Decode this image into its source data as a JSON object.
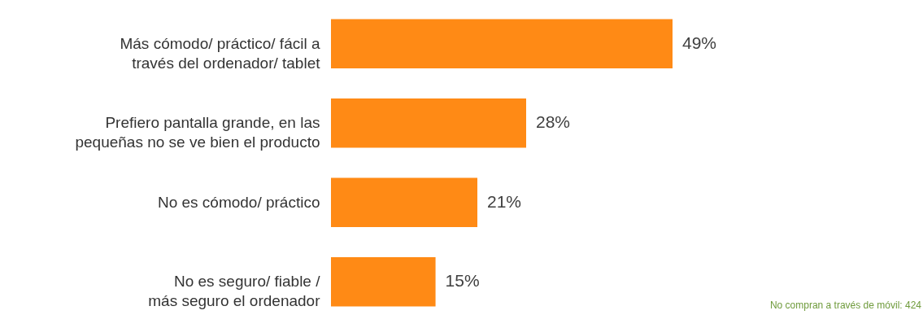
{
  "chart_data": {
    "type": "bar",
    "orientation": "horizontal",
    "categories": [
      "Más cómodo/ práctico/ fácil a\ntravés del ordenador/ tablet",
      "Prefiero pantalla grande, en las\npequeñas no se ve bien el producto",
      "No es cómodo/ práctico",
      "No es seguro/ fiable /\nmás seguro el ordenador"
    ],
    "values": [
      49,
      28,
      21,
      15
    ],
    "color": "#ff8a15",
    "value_labels": [
      "49%",
      "28%",
      "21%",
      "15%"
    ],
    "annotations": [
      "No compran a través de móvil: 424"
    ]
  }
}
